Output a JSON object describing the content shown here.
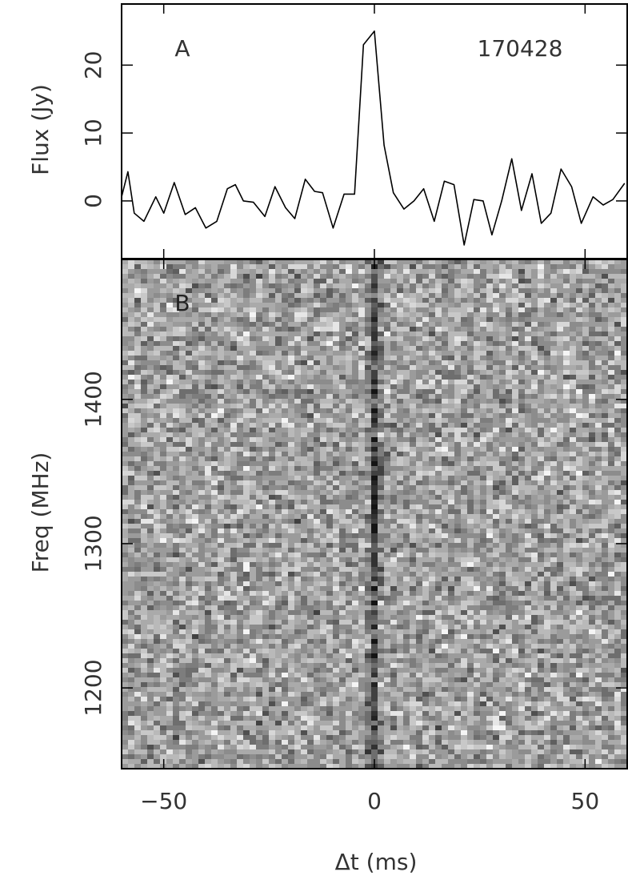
{
  "chart_data": [
    {
      "type": "line",
      "ylabel": "Flux (Jy)",
      "annotations": [
        "A",
        "170428"
      ],
      "x": [
        -60,
        -58.5,
        -57,
        -54.7,
        -51.9,
        -50,
        -47.5,
        -44.9,
        -42.5,
        -40,
        -37.4,
        -34.9,
        -33,
        -31.1,
        -28.7,
        -26,
        -23.6,
        -21.1,
        -18.9,
        -16.4,
        -14.2,
        -12.3,
        -9.8,
        -7.2,
        -4.7,
        -2.6,
        0,
        2.3,
        4.5,
        7,
        9.4,
        11.7,
        14.2,
        16.6,
        18.9,
        21.3,
        23.6,
        25.8,
        27.9,
        30.2,
        32.6,
        34.9,
        37.4,
        39.6,
        41.9,
        44.3,
        46.8,
        49.1,
        51.9,
        54.3,
        56.6,
        59.4
      ],
      "series": [
        {
          "color": "#000000",
          "values": [
            0.6,
            4.3,
            -1.8,
            -3,
            0.6,
            -1.8,
            2.7,
            -2,
            -1,
            -4,
            -3,
            1.8,
            2.4,
            0,
            -0.2,
            -2.3,
            2.1,
            -1,
            -2.6,
            3.2,
            1.4,
            1.2,
            -4,
            1,
            1,
            23,
            25,
            8.2,
            1.2,
            -1.2,
            0,
            1.8,
            -3,
            2.9,
            2.4,
            -6.5,
            0.2,
            0,
            -5,
            0,
            6.2,
            -1.4,
            4,
            -3.3,
            -1.8,
            4.7,
            2.1,
            -3.3,
            0.6,
            -0.6,
            0.2,
            2.6
          ]
        }
      ],
      "xlim": [
        -60,
        60
      ],
      "ylim": [
        -8.5,
        29
      ],
      "yticks": [
        0,
        10,
        20
      ]
    },
    {
      "type": "waterfall",
      "ylabel": "Freq (MHz)",
      "xlabel": "Δt (ms)",
      "annotations": [
        "B"
      ],
      "xlim": [
        -60,
        60
      ],
      "xticks": [
        {
          "value": -50,
          "label": "−50"
        },
        0,
        50
      ],
      "ylim": [
        1144,
        1497
      ],
      "yticks": [
        1200,
        1300,
        1400
      ]
    }
  ]
}
